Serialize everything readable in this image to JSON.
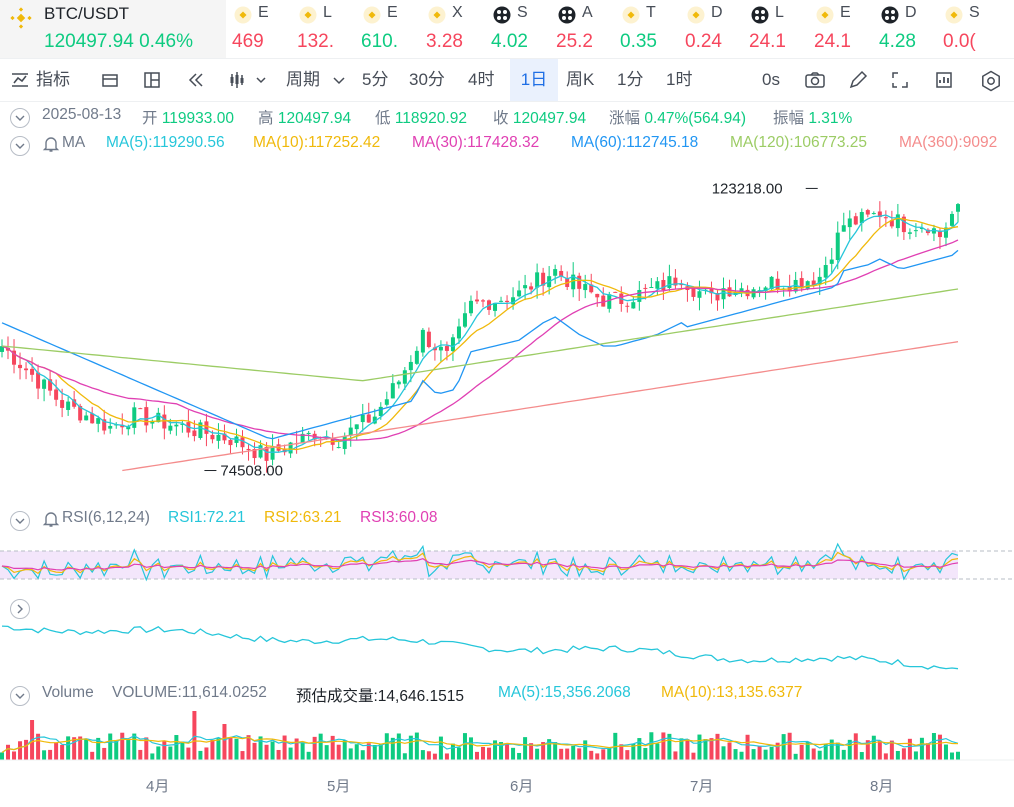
{
  "symbol": {
    "name": "BTC/USDT",
    "price": "120497.94",
    "change": "0.46%"
  },
  "tickers": [
    {
      "nm": "E",
      "px": "469",
      "color": "#f6465d",
      "icon": "binance-coin-icon"
    },
    {
      "nm": "L",
      "px": "132.",
      "color": "#f6465d",
      "icon": "binance-coin-icon"
    },
    {
      "nm": "E",
      "px": "610.",
      "color": "#0ecb81",
      "icon": "binance-coin-icon"
    },
    {
      "nm": "X",
      "px": "3.28",
      "color": "#f6465d",
      "icon": "binance-coin-icon"
    },
    {
      "nm": "S",
      "px": "4.02",
      "color": "#0ecb81",
      "icon": "alpha-icon"
    },
    {
      "nm": "A",
      "px": "25.2",
      "color": "#f6465d",
      "icon": "alpha-icon"
    },
    {
      "nm": "T",
      "px": "0.35",
      "color": "#0ecb81",
      "icon": "binance-coin-icon"
    },
    {
      "nm": "D",
      "px": "0.24",
      "color": "#f6465d",
      "icon": "binance-coin-icon"
    },
    {
      "nm": "L",
      "px": "24.1",
      "color": "#f6465d",
      "icon": "alpha-icon"
    },
    {
      "nm": "E",
      "px": "24.1",
      "color": "#f6465d",
      "icon": "binance-coin-icon"
    },
    {
      "nm": "D",
      "px": "4.28",
      "color": "#0ecb81",
      "icon": "alpha-icon"
    },
    {
      "nm": "S",
      "px": "0.0(",
      "color": "#f6465d",
      "icon": "binance-coin-icon"
    }
  ],
  "toolbar": {
    "indicators": "指标",
    "period": "周期",
    "intervals": [
      "5分",
      "30分",
      "4时",
      "1日",
      "周K",
      "1分",
      "1时"
    ],
    "active_interval": "1日",
    "refresh": "0s"
  },
  "ohlc": {
    "date": "2025-08-13",
    "open_label": "开",
    "open": "119933.00",
    "high_label": "高",
    "high": "120497.94",
    "low_label": "低",
    "low": "118920.92",
    "close_label": "收",
    "close": "120497.94",
    "change_label": "涨幅",
    "change": "0.47%(564.94)",
    "amp_label": "振幅",
    "amp": "1.31%"
  },
  "ma": {
    "label": "MA",
    "ma5": "MA(5):119290.56",
    "ma10": "MA(10):117252.42",
    "ma30": "MA(30):117428.32",
    "ma60": "MA(60):112745.18",
    "ma120": "MA(120):106773.25",
    "ma360": "MA(360):9092"
  },
  "rsi": {
    "label": "RSI(6,12,24)",
    "rsi1": "RSI1:72.21",
    "rsi2": "RSI2:63.21",
    "rsi3": "RSI3:60.08"
  },
  "volume": {
    "label": "Volume",
    "vol": "VOLUME:11,614.0252",
    "est": "预估成交量:14,646.1515",
    "ma5": "MA(5):15,356.2068",
    "ma10": "MA(10):13,135.6377"
  },
  "annotations": {
    "high": "123218.00",
    "low": "74508.00"
  },
  "colors": {
    "up": "#0ecb81",
    "down": "#f6465d",
    "ma5": "#26c6da",
    "ma10": "#f0b90b",
    "ma30": "#e040b3",
    "ma60": "#2196f3",
    "ma120": "#9ccc65",
    "ma360": "#f48c8c",
    "rsi1": "#26c6da",
    "rsi2": "#f0b90b",
    "rsi3": "#e040b3"
  },
  "chart_data": {
    "type": "candlestick",
    "x_ticks": [
      "4月",
      "5月",
      "6月",
      "7月",
      "8月"
    ],
    "y_range": [
      72000,
      125000
    ],
    "ma_last": {
      "MA(5)": 119290.56,
      "MA(10)": 117252.42,
      "MA(30)": 117428.32,
      "MA(60)": 112745.18,
      "MA(120)": 106773.25
    },
    "annotated_high": 123218.0,
    "annotated_low": 74508.0,
    "last": {
      "open": 119933.0,
      "high": 120497.94,
      "low": 118920.92,
      "close": 120497.94
    }
  }
}
